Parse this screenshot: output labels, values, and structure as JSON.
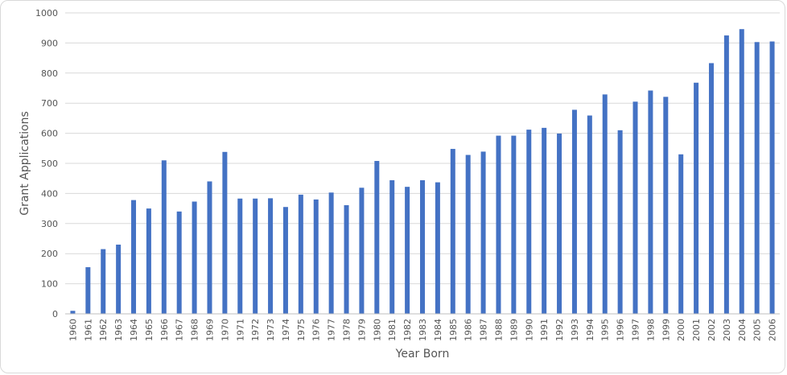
{
  "chart_data": {
    "type": "bar",
    "xlabel": "Year Born",
    "ylabel": "Grant Applications",
    "ylim": [
      0,
      1000
    ],
    "yticks": [
      "0",
      "100",
      "200",
      "300",
      "400",
      "500",
      "600",
      "700",
      "800",
      "900",
      "1000"
    ],
    "grid": true,
    "bar_color": "#4472c4",
    "categories": [
      "1960",
      "1961",
      "1962",
      "1963",
      "1964",
      "1965",
      "1966",
      "1967",
      "1968",
      "1969",
      "1970",
      "1971",
      "1972",
      "1973",
      "1974",
      "1975",
      "1976",
      "1977",
      "1978",
      "1979",
      "1980",
      "1981",
      "1982",
      "1983",
      "1984",
      "1985",
      "1986",
      "1987",
      "1988",
      "1989",
      "1990",
      "1991",
      "1992",
      "1993",
      "1994",
      "1995",
      "1996",
      "1997",
      "1998",
      "1999",
      "2000",
      "2001",
      "2002",
      "2003",
      "2004",
      "2005",
      "2006"
    ],
    "values": [
      10,
      155,
      215,
      230,
      378,
      350,
      510,
      340,
      373,
      440,
      538,
      383,
      383,
      384,
      355,
      396,
      380,
      403,
      361,
      419,
      508,
      444,
      422,
      444,
      437,
      548,
      528,
      539,
      592,
      592,
      612,
      618,
      599,
      678,
      659,
      729,
      610,
      705,
      742,
      721,
      530,
      768,
      833,
      925,
      946,
      903,
      905
    ]
  }
}
